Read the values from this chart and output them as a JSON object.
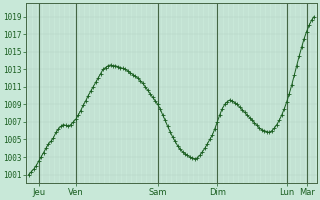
{
  "background_color": "#c8e8d8",
  "plot_bg_color": "#c8e8d8",
  "line_color": "#1a5e20",
  "marker_color": "#1a5e20",
  "grid_color": "#b0cfc0",
  "tick_label_color": "#1a5e20",
  "ylabel_values": [
    1001,
    1003,
    1005,
    1007,
    1009,
    1011,
    1013,
    1015,
    1017,
    1019
  ],
  "ylim": [
    1000.0,
    1020.5
  ],
  "xlim": [
    -1,
    116
  ],
  "xtick_labels": [
    "Jeu",
    "Ven",
    "Sam",
    "Dim",
    "Lun",
    "Mar"
  ],
  "xtick_positions": [
    4,
    19,
    52,
    76,
    104,
    112
  ],
  "vline_positions": [
    4,
    19,
    52,
    76,
    104,
    112
  ],
  "n_points": 116,
  "y_data": [
    1001.0,
    1001.3,
    1001.6,
    1002.0,
    1002.5,
    1003.0,
    1003.5,
    1004.0,
    1004.5,
    1004.8,
    1005.2,
    1005.8,
    1006.2,
    1006.5,
    1006.7,
    1006.6,
    1006.5,
    1006.7,
    1007.0,
    1007.3,
    1007.8,
    1008.3,
    1008.9,
    1009.4,
    1010.0,
    1010.5,
    1011.0,
    1011.5,
    1012.0,
    1012.5,
    1013.0,
    1013.2,
    1013.4,
    1013.5,
    1013.4,
    1013.4,
    1013.3,
    1013.2,
    1013.1,
    1013.0,
    1012.8,
    1012.6,
    1012.4,
    1012.2,
    1012.0,
    1011.7,
    1011.4,
    1011.0,
    1010.6,
    1010.2,
    1009.8,
    1009.4,
    1009.0,
    1008.5,
    1007.8,
    1007.2,
    1006.5,
    1005.9,
    1005.3,
    1004.8,
    1004.3,
    1003.9,
    1003.6,
    1003.4,
    1003.2,
    1003.0,
    1002.9,
    1002.8,
    1002.9,
    1003.2,
    1003.6,
    1004.0,
    1004.5,
    1005.0,
    1005.5,
    1006.2,
    1007.0,
    1007.8,
    1008.5,
    1009.0,
    1009.3,
    1009.5,
    1009.4,
    1009.2,
    1009.0,
    1008.7,
    1008.4,
    1008.1,
    1007.8,
    1007.5,
    1007.2,
    1006.9,
    1006.6,
    1006.3,
    1006.1,
    1006.0,
    1005.9,
    1005.8,
    1006.0,
    1006.3,
    1006.7,
    1007.2,
    1007.8,
    1008.5,
    1009.3,
    1010.2,
    1011.2,
    1012.3,
    1013.4,
    1014.5,
    1015.5,
    1016.5,
    1017.3,
    1018.0,
    1018.6,
    1019.0
  ]
}
